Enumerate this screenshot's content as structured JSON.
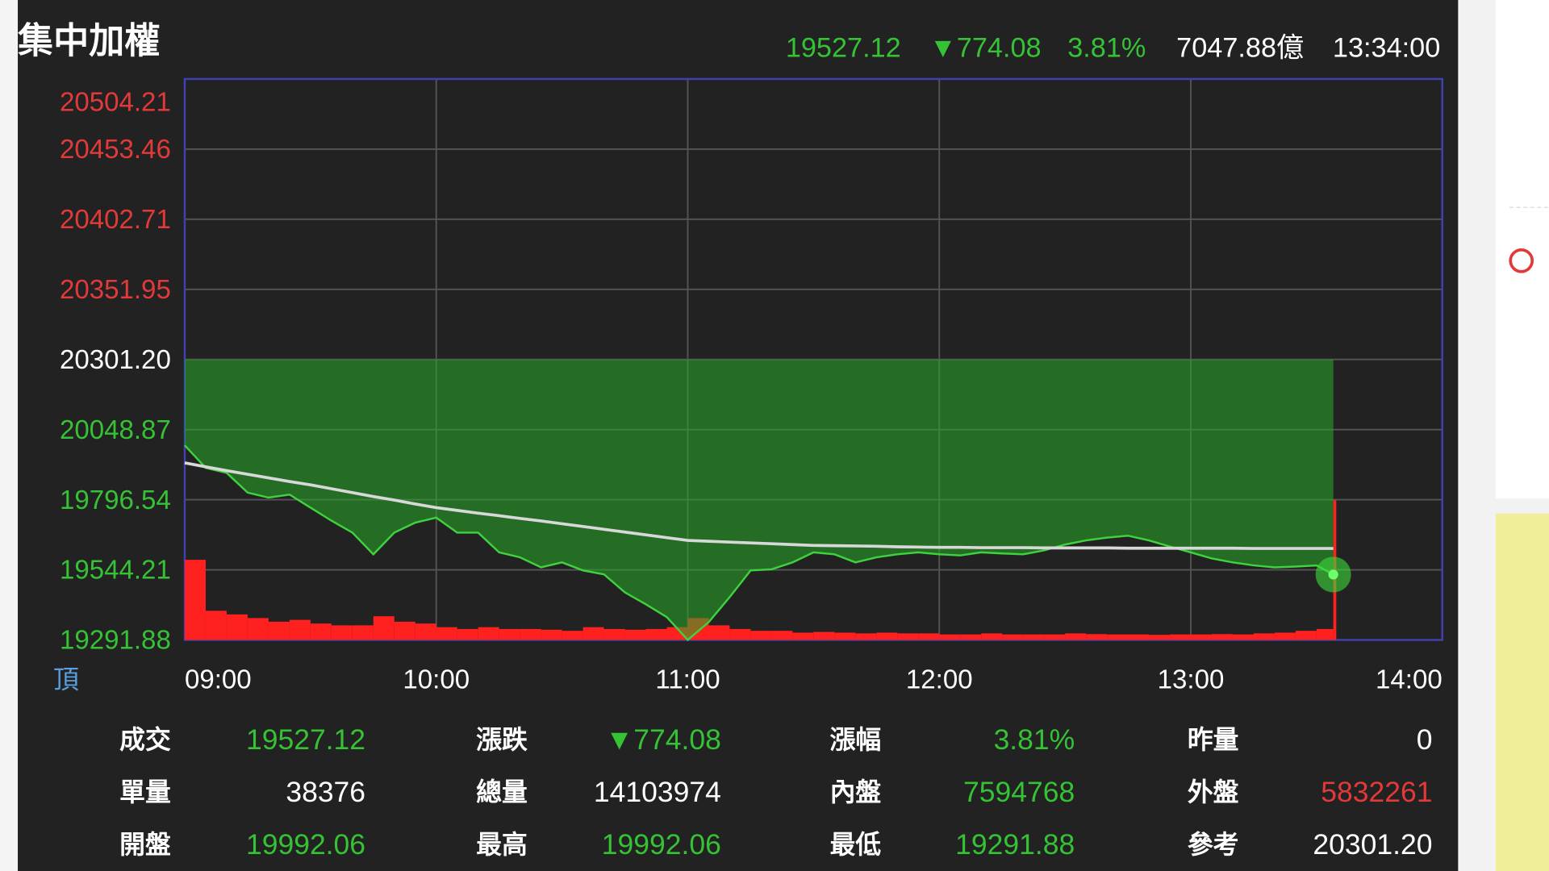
{
  "chart_data": {
    "type": "line",
    "title": "集中加權",
    "quote": [
      {
        "text": "19527.12",
        "color": "#35c235"
      },
      {
        "text": "▼774.08",
        "color": "#35c235"
      },
      {
        "text": "3.81%",
        "color": "#35c235"
      },
      {
        "text": "7047.88億",
        "color": "#ffffff"
      },
      {
        "text": "13:34:00",
        "color": "#ffffff"
      }
    ],
    "corner_label": "頂",
    "reference": 20301.2,
    "above_color": "#e23a3a",
    "below_color": "#35c235",
    "reference_color": "#ffffff",
    "area_color": "rgba(40,170,40,0.55)",
    "x": [
      "09:00",
      "09:05",
      "09:10",
      "09:15",
      "09:20",
      "09:25",
      "09:30",
      "09:35",
      "09:40",
      "09:45",
      "09:50",
      "09:55",
      "10:00",
      "10:05",
      "10:10",
      "10:15",
      "10:20",
      "10:25",
      "10:30",
      "10:35",
      "10:40",
      "10:45",
      "10:50",
      "10:55",
      "11:00",
      "11:05",
      "11:10",
      "11:15",
      "11:20",
      "11:25",
      "11:30",
      "11:35",
      "11:40",
      "11:45",
      "11:50",
      "11:55",
      "12:00",
      "12:05",
      "12:10",
      "12:15",
      "12:20",
      "12:25",
      "12:30",
      "12:35",
      "12:40",
      "12:45",
      "12:50",
      "12:55",
      "13:00",
      "13:05",
      "13:10",
      "13:15",
      "13:20",
      "13:25",
      "13:30",
      "13:34"
    ],
    "series": [
      {
        "color": "#3fd23f",
        "values": [
          19992.06,
          19911,
          19893,
          19822,
          19804,
          19815,
          19768,
          19721,
          19678,
          19600,
          19678,
          19714,
          19732,
          19678,
          19678,
          19607,
          19589,
          19553,
          19571,
          19542,
          19528,
          19463,
          19420,
          19374,
          19291.88,
          19356,
          19446,
          19542,
          19546,
          19571,
          19607,
          19600,
          19571,
          19589,
          19600,
          19607,
          19600,
          19596,
          19607,
          19603,
          19600,
          19614,
          19635,
          19650,
          19660,
          19667,
          19650,
          19628,
          19607,
          19585,
          19571,
          19560,
          19553,
          19556,
          19560,
          19527.12
        ]
      },
      {
        "color": "#d8d8d8",
        "values": [
          19929,
          19915,
          19901,
          19888,
          19875,
          19862,
          19850,
          19836,
          19822,
          19808,
          19795,
          19781,
          19768,
          19758,
          19748,
          19739,
          19729,
          19720,
          19710,
          19700,
          19690,
          19680,
          19670,
          19660,
          19650,
          19647,
          19644,
          19641,
          19638,
          19635,
          19632,
          19631,
          19630,
          19629,
          19627,
          19626,
          19625,
          19625,
          19624,
          19624,
          19624,
          19623,
          19623,
          19623,
          19623,
          19622,
          19622,
          19622,
          19622,
          19622,
          19622,
          19621,
          19621,
          19621,
          19621,
          19621
        ]
      },
      {
        "color": "#ff2020",
        "axis": "y2",
        "values": [
          22000,
          8000,
          7000,
          6000,
          5000,
          5500,
          4500,
          4000,
          4000,
          6500,
          5000,
          4500,
          3500,
          3000,
          3500,
          3000,
          3000,
          2800,
          2500,
          3500,
          3000,
          2800,
          3000,
          3500,
          6000,
          4000,
          3000,
          2500,
          2500,
          2000,
          2200,
          2000,
          1800,
          2000,
          1800,
          1800,
          1500,
          1500,
          1800,
          1500,
          1500,
          1500,
          1800,
          1600,
          1500,
          1500,
          1400,
          1500,
          1500,
          1600,
          1500,
          1800,
          2000,
          2500,
          3000,
          38376
        ]
      }
    ],
    "xlim": [
      "09:00",
      "14:00"
    ],
    "xticks": [
      "09:00",
      "10:00",
      "11:00",
      "12:00",
      "13:00",
      "14:00"
    ],
    "ylim": [
      19291.88,
      20504.21
    ],
    "yticks": [
      19291.88,
      19544.21,
      19796.54,
      20048.87,
      {
        "value": 20301.2,
        "label": "20301.20"
      },
      20351.95,
      20402.71,
      20453.46,
      20504.21
    ],
    "y2lim": [
      0,
      154000
    ],
    "grid": true,
    "stats": [
      [
        {
          "label": "成交",
          "value": "19527.12",
          "color": "#35c235"
        },
        {
          "label": "漲跌",
          "value": "▼774.08",
          "color": "#35c235"
        },
        {
          "label": "漲幅",
          "value": "3.81%",
          "color": "#35c235"
        },
        {
          "label": "昨量",
          "value": "0",
          "color": "#ffffff"
        }
      ],
      [
        {
          "label": "單量",
          "value": "38376",
          "color": "#ffffff"
        },
        {
          "label": "總量",
          "value": "14103974",
          "color": "#ffffff"
        },
        {
          "label": "內盤",
          "value": "7594768",
          "color": "#35c235"
        },
        {
          "label": "外盤",
          "value": "5832261",
          "color": "#e23a3a"
        }
      ],
      [
        {
          "label": "開盤",
          "value": "19992.06",
          "color": "#35c235"
        },
        {
          "label": "最高",
          "value": "19992.06",
          "color": "#35c235"
        },
        {
          "label": "最低",
          "value": "19291.88",
          "color": "#35c235"
        },
        {
          "label": "參考",
          "value": "20301.20",
          "color": "#ffffff"
        }
      ]
    ]
  }
}
